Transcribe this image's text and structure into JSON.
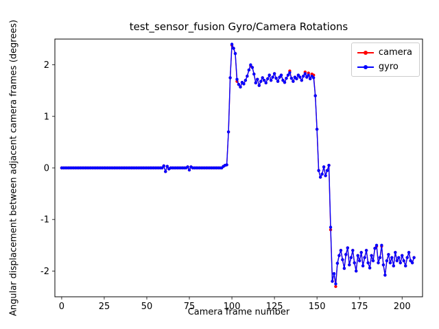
{
  "chart_data": {
    "type": "line",
    "title": "test_sensor_fusion Gyro/Camera Rotations",
    "xlabel": "Camera frame number",
    "ylabel": "Angular displacement between adjacent camera frames (degrees)",
    "xlim": [
      -4,
      212
    ],
    "ylim": [
      -2.5,
      2.5
    ],
    "xticks": [
      0,
      25,
      50,
      75,
      100,
      125,
      150,
      175,
      200
    ],
    "yticks": [
      -2,
      -1,
      0,
      1,
      2
    ],
    "legend_position": "upper right",
    "grid": false,
    "x_start": 0,
    "x_step": 1,
    "series": [
      {
        "name": "camera",
        "color": "#ff0000",
        "values": [
          0,
          0,
          0,
          0,
          0,
          0,
          0,
          0,
          0,
          0,
          0,
          0,
          0,
          0,
          0,
          0,
          0,
          0,
          0,
          0,
          0,
          0,
          0,
          0,
          0,
          0,
          0,
          0,
          0,
          0,
          0,
          0,
          0,
          0,
          0,
          0,
          0,
          0,
          0,
          0,
          0,
          0,
          0,
          0,
          0,
          0,
          0,
          0,
          0,
          0,
          0,
          0,
          0,
          0,
          0,
          0,
          0,
          0,
          0,
          0,
          0.04,
          -0.07,
          0.03,
          -0.02,
          0,
          0,
          0,
          0,
          0,
          0,
          0,
          0,
          0,
          0,
          0.02,
          -0.04,
          0.02,
          0,
          0,
          0,
          0,
          0,
          0,
          0,
          0,
          0,
          0,
          0,
          0,
          0,
          0,
          0,
          0,
          0,
          0,
          0.03,
          0.05,
          0.06,
          0.7,
          1.75,
          2.38,
          2.32,
          2.22,
          1.68,
          1.62,
          1.57,
          1.66,
          1.63,
          1.7,
          1.78,
          1.9,
          1.98,
          1.95,
          1.82,
          1.65,
          1.72,
          1.6,
          1.68,
          1.75,
          1.7,
          1.65,
          1.73,
          1.8,
          1.7,
          1.76,
          1.83,
          1.74,
          1.68,
          1.76,
          1.8,
          1.7,
          1.66,
          1.74,
          1.8,
          1.88,
          1.74,
          1.68,
          1.76,
          1.73,
          1.8,
          1.76,
          1.7,
          1.78,
          1.86,
          1.76,
          1.84,
          1.73,
          1.82,
          1.8,
          1.4,
          0.75,
          -0.05,
          -0.18,
          -0.12,
          0.02,
          -0.15,
          -0.05,
          0.05,
          -1.2,
          -2.2,
          -2.05,
          -2.3,
          -1.85,
          -1.7,
          -1.6,
          -1.78,
          -1.95,
          -1.68,
          -1.55,
          -1.88,
          -1.74,
          -1.6,
          -1.84,
          -2.0,
          -1.7,
          -1.8,
          -1.64,
          -1.9,
          -1.74,
          -1.6,
          -1.84,
          -1.94,
          -1.7,
          -1.8,
          -1.56,
          -1.52,
          -1.84,
          -1.74,
          -1.52,
          -1.88,
          -2.08,
          -1.8,
          -1.68,
          -1.84,
          -1.74,
          -1.9,
          -1.64,
          -1.8,
          -1.74,
          -1.84,
          -1.7,
          -1.8,
          -1.9,
          -1.74,
          -1.64,
          -1.8,
          -1.84,
          -1.74
        ]
      },
      {
        "name": "gyro",
        "color": "#0000ff",
        "values": [
          0,
          0,
          0,
          0,
          0,
          0,
          0,
          0,
          0,
          0,
          0,
          0,
          0,
          0,
          0,
          0,
          0,
          0,
          0,
          0,
          0,
          0,
          0,
          0,
          0,
          0,
          0,
          0,
          0,
          0,
          0,
          0,
          0,
          0,
          0,
          0,
          0,
          0,
          0,
          0,
          0,
          0,
          0,
          0,
          0,
          0,
          0,
          0,
          0,
          0,
          0,
          0,
          0,
          0,
          0,
          0,
          0,
          0,
          0,
          0,
          0.04,
          -0.07,
          0.03,
          -0.02,
          0,
          0,
          0,
          0,
          0,
          0,
          0,
          0,
          0,
          0,
          0.02,
          -0.04,
          0.02,
          0,
          0,
          0,
          0,
          0,
          0,
          0,
          0,
          0,
          0,
          0,
          0,
          0,
          0,
          0,
          0,
          0,
          0,
          0.03,
          0.05,
          0.06,
          0.7,
          1.75,
          2.4,
          2.32,
          2.22,
          1.72,
          1.62,
          1.57,
          1.66,
          1.63,
          1.7,
          1.78,
          1.9,
          2.0,
          1.95,
          1.82,
          1.65,
          1.72,
          1.6,
          1.68,
          1.75,
          1.7,
          1.65,
          1.73,
          1.8,
          1.7,
          1.76,
          1.83,
          1.74,
          1.68,
          1.76,
          1.8,
          1.7,
          1.66,
          1.74,
          1.8,
          1.85,
          1.74,
          1.68,
          1.76,
          1.73,
          1.8,
          1.76,
          1.7,
          1.78,
          1.83,
          1.76,
          1.8,
          1.73,
          1.78,
          1.75,
          1.4,
          0.75,
          -0.05,
          -0.18,
          -0.12,
          0.02,
          -0.15,
          -0.05,
          0.05,
          -1.15,
          -2.2,
          -2.05,
          -2.25,
          -1.85,
          -1.7,
          -1.6,
          -1.78,
          -1.95,
          -1.68,
          -1.55,
          -1.88,
          -1.74,
          -1.6,
          -1.84,
          -2.0,
          -1.7,
          -1.8,
          -1.64,
          -1.9,
          -1.74,
          -1.6,
          -1.84,
          -1.94,
          -1.7,
          -1.8,
          -1.56,
          -1.5,
          -1.84,
          -1.74,
          -1.5,
          -1.88,
          -2.08,
          -1.8,
          -1.68,
          -1.84,
          -1.74,
          -1.9,
          -1.64,
          -1.8,
          -1.74,
          -1.84,
          -1.7,
          -1.8,
          -1.9,
          -1.74,
          -1.64,
          -1.8,
          -1.84,
          -1.74
        ]
      }
    ]
  }
}
